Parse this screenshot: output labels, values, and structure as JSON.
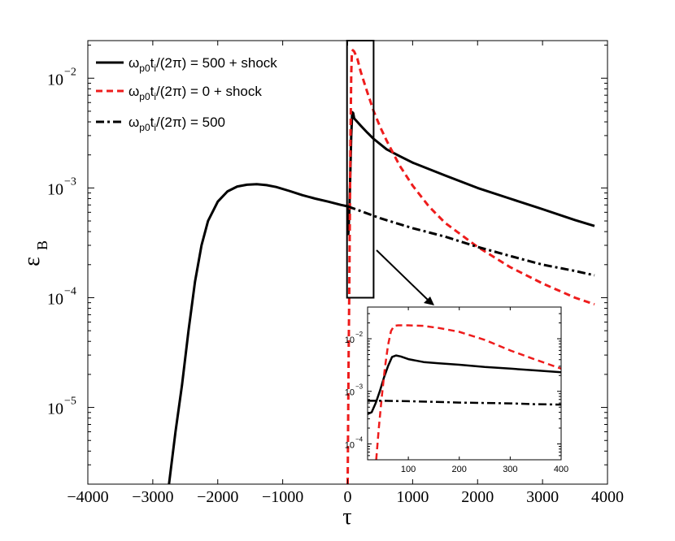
{
  "chart_data": {
    "type": "line",
    "xlabel": "τ",
    "ylabel": "ε",
    "ylabel_sub": "B",
    "yscale": "log",
    "xlim": [
      -4000,
      4000
    ],
    "ylim": [
      2e-06,
      0.022
    ],
    "x_ticks": [
      -4000,
      -3000,
      -2000,
      -1000,
      0,
      1000,
      2000,
      3000,
      4000
    ],
    "x_tick_labels": [
      "−4000",
      "−3000",
      "−2000",
      "−1000",
      "0",
      "1000",
      "2000",
      "3000",
      "4000"
    ],
    "y_ticks": [
      1e-05,
      0.0001,
      0.001,
      0.01
    ],
    "y_tick_bases": [
      "10",
      "10",
      "10",
      "10"
    ],
    "y_tick_exps": [
      "−5",
      "−4",
      "−3",
      "−2"
    ],
    "legend": {
      "location": "top-left",
      "entries": [
        {
          "prefix": "ω",
          "sub1": "p0",
          "mid": "t",
          "sub2": "i",
          "suffix": "/(2π) = 500 + shock",
          "color": "#000000",
          "style": "solid"
        },
        {
          "prefix": "ω",
          "sub1": "p0",
          "mid": "t",
          "sub2": "i",
          "suffix": "/(2π) = 0 + shock",
          "color": "#ee1c1c",
          "style": "dashed"
        },
        {
          "prefix": "ω",
          "sub1": "p0",
          "mid": "t",
          "sub2": "i",
          "suffix": "/(2π) = 500",
          "color": "#000000",
          "style": "dashdot"
        }
      ]
    },
    "series": [
      {
        "name": "ωp0ti/(2π) = 500 + shock",
        "color": "#000000",
        "style": "solid",
        "x": [
          -2750,
          -2650,
          -2550,
          -2450,
          -2350,
          -2250,
          -2150,
          -2000,
          -1850,
          -1700,
          -1550,
          -1400,
          -1250,
          -1100,
          -900,
          -700,
          -500,
          -300,
          -100,
          0,
          10,
          25,
          40,
          55,
          70,
          85,
          100,
          200,
          300,
          400,
          600,
          800,
          1000,
          1500,
          2000,
          2500,
          3000,
          3500,
          3800
        ],
        "y": [
          2e-06,
          6e-06,
          1.6e-05,
          5e-05,
          0.00014,
          0.0003,
          0.0005,
          0.00075,
          0.00093,
          0.00103,
          0.00107,
          0.00108,
          0.00106,
          0.00102,
          0.00094,
          0.00086,
          0.0008,
          0.00075,
          0.0007,
          0.00068,
          0.00038,
          0.0006,
          0.0013,
          0.003,
          0.0049,
          0.0048,
          0.0043,
          0.0037,
          0.0032,
          0.0028,
          0.00225,
          0.00195,
          0.0017,
          0.0013,
          0.001,
          0.0008,
          0.00064,
          0.00051,
          0.00045
        ]
      },
      {
        "name": "ωp0ti/(2π) = 0 + shock",
        "color": "#ee1c1c",
        "style": "dashed",
        "x": [
          0,
          15,
          25,
          35,
          45,
          55,
          65,
          80,
          100,
          150,
          200,
          300,
          400,
          500,
          600,
          800,
          1000,
          1250,
          1500,
          2000,
          2500,
          3000,
          3500,
          3800
        ],
        "y": [
          2e-06,
          3e-05,
          0.00012,
          0.0007,
          0.0035,
          0.011,
          0.017,
          0.018,
          0.0175,
          0.015,
          0.0115,
          0.0075,
          0.005,
          0.0036,
          0.0027,
          0.0016,
          0.00105,
          0.00068,
          0.00048,
          0.00029,
          0.00019,
          0.000135,
          0.0001,
          8.7e-05
        ]
      },
      {
        "name": "ωp0ti/(2π) = 500",
        "color": "#000000",
        "style": "dashdot",
        "x": [
          0,
          500,
          1000,
          1500,
          2000,
          2500,
          3000,
          3500,
          3800
        ],
        "y": [
          0.00068,
          0.00053,
          0.00043,
          0.00036,
          0.00029,
          0.00024,
          0.0002,
          0.000175,
          0.00016
        ]
      }
    ],
    "zoom_box": {
      "x": [
        -10,
        400
      ],
      "y": [
        0.0001,
        0.022
      ]
    },
    "inset": {
      "xlim": [
        20,
        400
      ],
      "ylim": [
        5e-05,
        0.04
      ],
      "x_ticks": [
        100,
        200,
        300,
        400
      ],
      "x_tick_labels": [
        "100",
        "200",
        "300",
        "400"
      ],
      "y_ticks": [
        0.0001,
        0.001,
        0.01
      ],
      "y_tick_bases": [
        "10",
        "10",
        "10"
      ],
      "y_tick_exps": [
        "−4",
        "−3",
        "−2"
      ],
      "series": [
        {
          "name": "ωp0ti/(2π) = 500 + shock (zoom)",
          "color": "#000000",
          "style": "solid",
          "x": [
            20,
            28,
            36,
            44,
            52,
            60,
            68,
            76,
            85,
            100,
            130,
            160,
            200,
            250,
            300,
            350,
            400
          ],
          "y": [
            0.00037,
            0.0004,
            0.0006,
            0.001,
            0.0018,
            0.003,
            0.0045,
            0.0048,
            0.0046,
            0.0041,
            0.0036,
            0.0034,
            0.0032,
            0.0029,
            0.0027,
            0.0025,
            0.0023
          ]
        },
        {
          "name": "ωp0ti/(2π) = 0 + shock (zoom)",
          "color": "#ee1c1c",
          "style": "dashed",
          "x": [
            37,
            42,
            48,
            54,
            60,
            66,
            72,
            80,
            100,
            130,
            160,
            200,
            250,
            300,
            350,
            400
          ],
          "y": [
            5e-05,
            0.0002,
            0.0008,
            0.0028,
            0.0075,
            0.014,
            0.0175,
            0.018,
            0.018,
            0.0175,
            0.016,
            0.0135,
            0.0095,
            0.006,
            0.004,
            0.0027
          ]
        },
        {
          "name": "ωp0ti/(2π) = 500 (zoom)",
          "color": "#000000",
          "style": "dashdot",
          "x": [
            20,
            50,
            100,
            150,
            200,
            250,
            300,
            350,
            400
          ],
          "y": [
            0.00066,
            0.00066,
            0.00065,
            0.00063,
            0.00061,
            0.0006,
            0.00059,
            0.00057,
            0.00056
          ]
        }
      ]
    }
  }
}
